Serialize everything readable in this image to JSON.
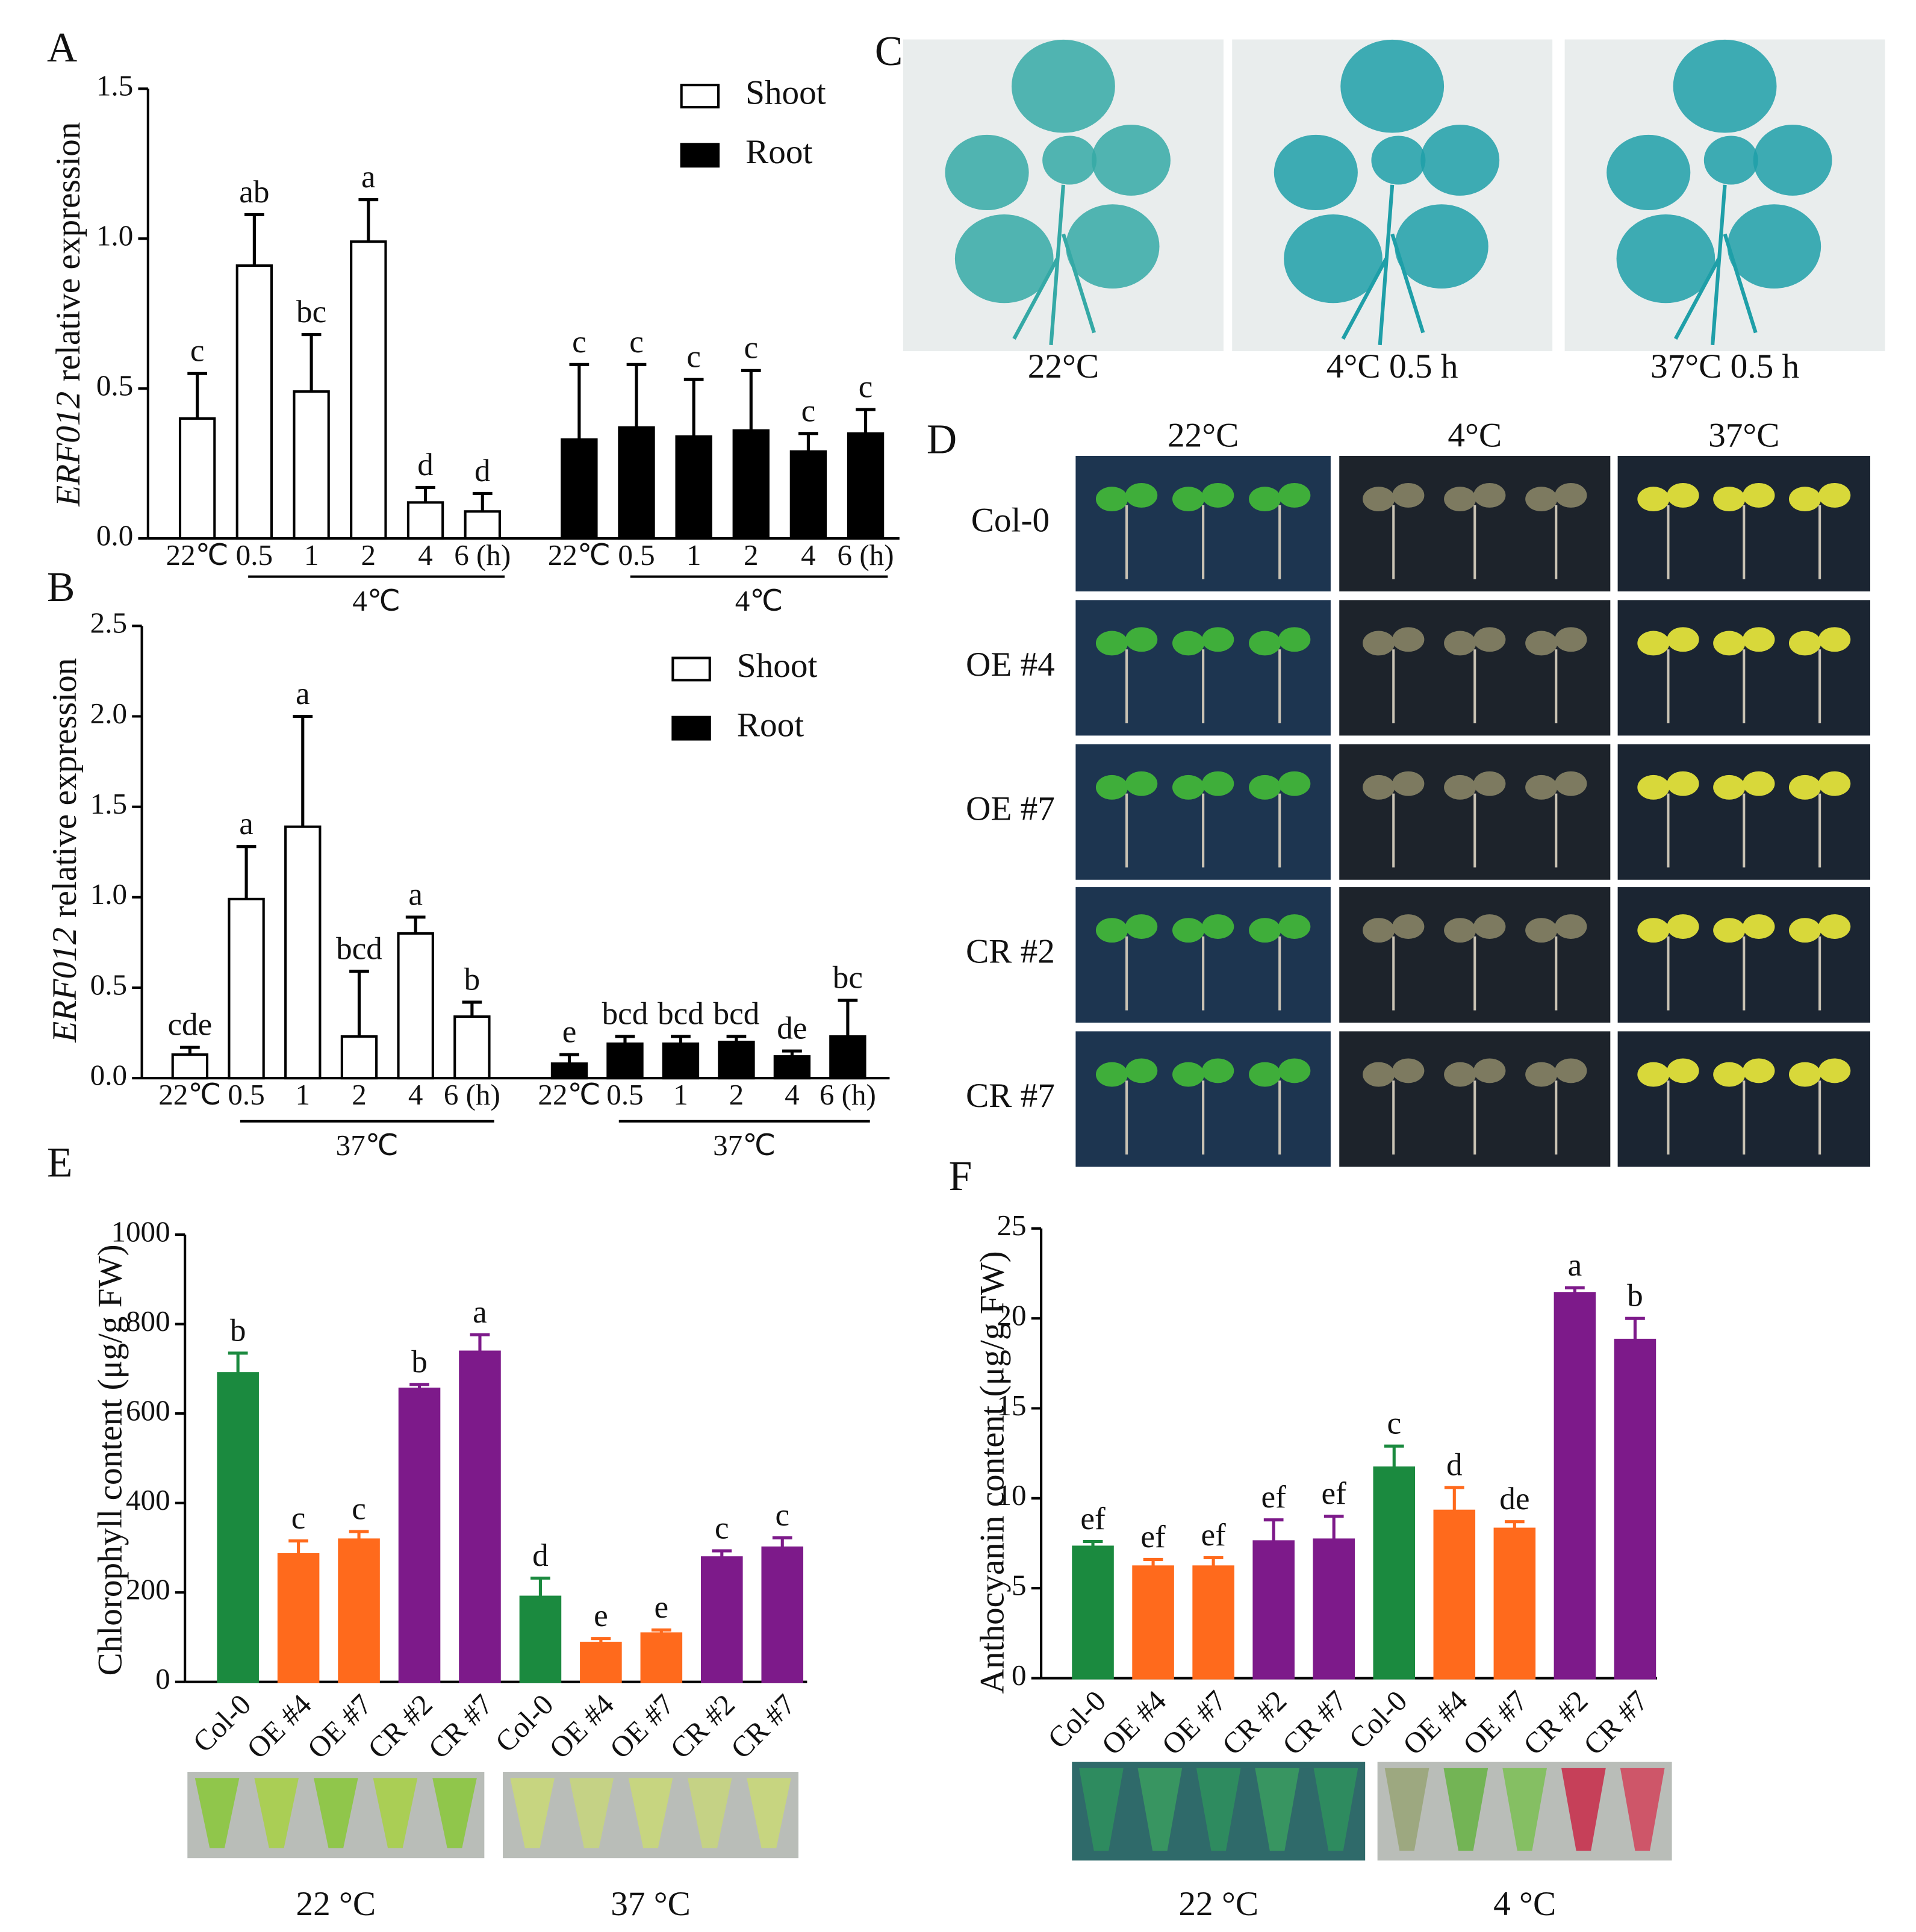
{
  "chart_data": [
    {
      "type": "bar",
      "panel": "A",
      "ylabel_gene": "ERF012",
      "ylabel": "relative expression",
      "categories": [
        "22℃",
        "0.5",
        "1",
        "2",
        "4",
        "6 (h)",
        "22℃",
        "0.5",
        "1",
        "2",
        "4",
        "6 (h)"
      ],
      "group_labels": [
        "4℃",
        "4℃"
      ],
      "series": [
        {
          "name": "Shoot",
          "color": "#ffffff",
          "values": [
            0.4,
            0.91,
            0.49,
            0.99,
            0.12,
            0.09,
            null,
            null,
            null,
            null,
            null,
            null
          ],
          "errors": [
            0.15,
            0.17,
            0.19,
            0.14,
            0.05,
            0.06,
            null,
            null,
            null,
            null,
            null,
            null
          ],
          "letters": [
            "c",
            "ab",
            "bc",
            "a",
            "d",
            "d",
            null,
            null,
            null,
            null,
            null,
            null
          ]
        },
        {
          "name": "Root",
          "color": "#000000",
          "values": [
            null,
            null,
            null,
            null,
            null,
            null,
            0.33,
            0.37,
            0.34,
            0.36,
            0.29,
            0.35
          ],
          "errors": [
            null,
            null,
            null,
            null,
            null,
            null,
            0.25,
            0.21,
            0.19,
            0.2,
            0.06,
            0.08
          ],
          "letters": [
            null,
            null,
            null,
            null,
            null,
            null,
            "c",
            "c",
            "c",
            "c",
            "c",
            "c"
          ]
        }
      ],
      "ylim": [
        0,
        1.5
      ],
      "yticks": [
        {
          "value": 0,
          "label": "0.0"
        },
        0.5,
        {
          "value": 1,
          "label": "1.0"
        },
        1.5
      ]
    },
    {
      "type": "bar",
      "panel": "B",
      "ylabel_gene": "ERF012",
      "ylabel": "relative expression",
      "categories": [
        "22℃",
        "0.5",
        "1",
        "2",
        "4",
        "6 (h)",
        "22℃",
        "0.5",
        "1",
        "2",
        "4",
        "6 (h)"
      ],
      "group_labels": [
        "37℃",
        "37℃"
      ],
      "series": [
        {
          "name": "Shoot",
          "color": "#ffffff",
          "values": [
            0.13,
            0.99,
            1.39,
            0.23,
            0.8,
            0.34,
            null,
            null,
            null,
            null,
            null,
            null
          ],
          "errors": [
            0.04,
            0.29,
            0.61,
            0.36,
            0.09,
            0.08,
            null,
            null,
            null,
            null,
            null,
            null
          ],
          "letters": [
            "cde",
            "a",
            "a",
            "bcd",
            "a",
            "b",
            null,
            null,
            null,
            null,
            null,
            null
          ]
        },
        {
          "name": "Root",
          "color": "#000000",
          "values": [
            null,
            null,
            null,
            null,
            null,
            null,
            0.08,
            0.19,
            0.19,
            0.2,
            0.12,
            0.23
          ],
          "errors": [
            null,
            null,
            null,
            null,
            null,
            null,
            0.05,
            0.04,
            0.04,
            0.03,
            0.03,
            0.2
          ],
          "letters": [
            null,
            null,
            null,
            null,
            null,
            null,
            "e",
            "bcd",
            "bcd",
            "bcd",
            "de",
            "bc"
          ]
        }
      ],
      "ylim": [
        0,
        2.5
      ],
      "yticks": [
        {
          "value": 0,
          "label": "0.0"
        },
        0.5,
        {
          "value": 1,
          "label": "1.0"
        },
        1.5,
        {
          "value": 2,
          "label": "2.0"
        },
        2.5
      ]
    },
    {
      "type": "bar",
      "panel": "E",
      "ylabel": "Chlorophyll content (μg/g FW)",
      "categories": [
        "Col-0",
        "OE #4",
        "OE #7",
        "CR #2",
        "CR #7",
        "Col-0",
        "OE #4",
        "OE #7",
        "CR #2",
        "CR #7"
      ],
      "colors": [
        "#1b8a3f",
        "#ff6a1c",
        "#ff6a1c",
        "#7d1a8a",
        "#7d1a8a",
        "#1b8a3f",
        "#ff6a1c",
        "#ff6a1c",
        "#7d1a8a",
        "#7d1a8a"
      ],
      "values": [
        690,
        285,
        318,
        655,
        738,
        190,
        87,
        108,
        278,
        300
      ],
      "errors": [
        45,
        30,
        18,
        10,
        38,
        42,
        10,
        8,
        15,
        22
      ],
      "letters": [
        "b",
        "c",
        "c",
        "b",
        "a",
        "d",
        "e",
        "e",
        "c",
        "c"
      ],
      "tube_labels": [
        "22 °C",
        "37 °C"
      ],
      "ylim": [
        0,
        1000
      ],
      "yticks": [
        0,
        200,
        400,
        600,
        800,
        1000
      ]
    },
    {
      "type": "bar",
      "panel": "F",
      "ylabel": "Anthocyanin content (μg/g FW)",
      "categories": [
        "Col-0",
        "OE #4",
        "OE #7",
        "CR #2",
        "CR #7",
        "Col-0",
        "OE #4",
        "OE #7",
        "CR #2",
        "CR #7"
      ],
      "colors": [
        "#1b8a3f",
        "#ff6a1c",
        "#ff6a1c",
        "#7d1a8a",
        "#7d1a8a",
        "#1b8a3f",
        "#ff6a1c",
        "#ff6a1c",
        "#7d1a8a",
        "#7d1a8a"
      ],
      "values": [
        7.3,
        6.2,
        6.2,
        7.6,
        7.7,
        11.7,
        9.3,
        8.3,
        21.4,
        18.8
      ],
      "errors": [
        0.3,
        0.4,
        0.5,
        1.2,
        1.3,
        1.2,
        1.3,
        0.4,
        0.3,
        1.2
      ],
      "letters": [
        "ef",
        "ef",
        "ef",
        "ef",
        "ef",
        "c",
        "d",
        "de",
        "a",
        "b"
      ],
      "tube_labels": [
        "22 °C",
        "4 °C"
      ],
      "ylim": [
        0,
        25
      ],
      "yticks": [
        0,
        5,
        10,
        15,
        20,
        25
      ]
    }
  ],
  "panel_c": {
    "letter": "C",
    "captions": [
      "22°C",
      "4°C  0.5 h",
      "37°C  0.5 h"
    ]
  },
  "panel_d": {
    "letter": "D",
    "columns": [
      "22°C",
      "4°C",
      "37°C"
    ],
    "rows": [
      "Col-0",
      "OE #4",
      "OE #7",
      "CR #2",
      "CR #7"
    ]
  }
}
